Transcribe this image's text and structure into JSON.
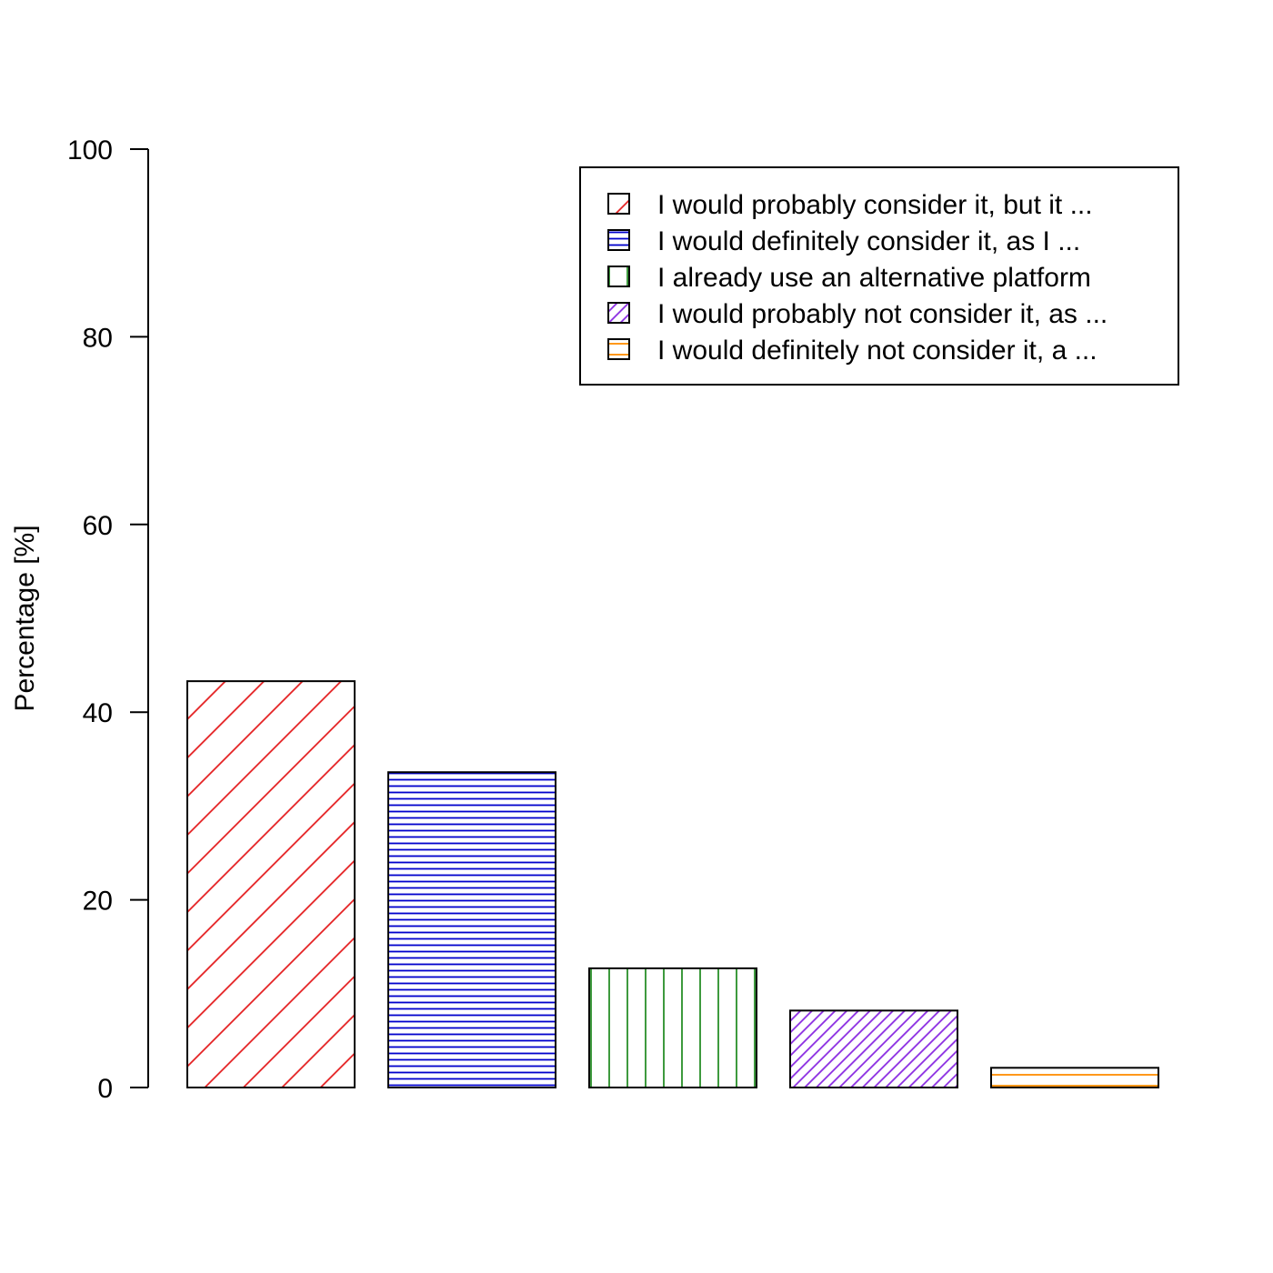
{
  "chart_data": {
    "type": "bar",
    "title": "",
    "xlabel": "",
    "ylabel": "Percentage [%]",
    "ylim": [
      0,
      100
    ],
    "yticks": [
      0,
      20,
      40,
      60,
      80,
      100
    ],
    "grid": false,
    "legend_position": "top-right",
    "categories": [
      "I would probably consider it, but it  ...",
      "I would definitely consider it, as I  ...",
      "I already use an alternative platform",
      "I would probably not consider it, as  ...",
      "I would definitely not consider it, a ..."
    ],
    "values": [
      43.3,
      33.6,
      12.7,
      8.2,
      2.1
    ],
    "colors": [
      "#e41a1c",
      "#0000cc",
      "#228b22",
      "#8a2be2",
      "#ff8c00"
    ],
    "patterns": [
      "diagonal-wide",
      "horizontal-dense",
      "vertical",
      "diagonal-dense",
      "horizontal"
    ]
  }
}
